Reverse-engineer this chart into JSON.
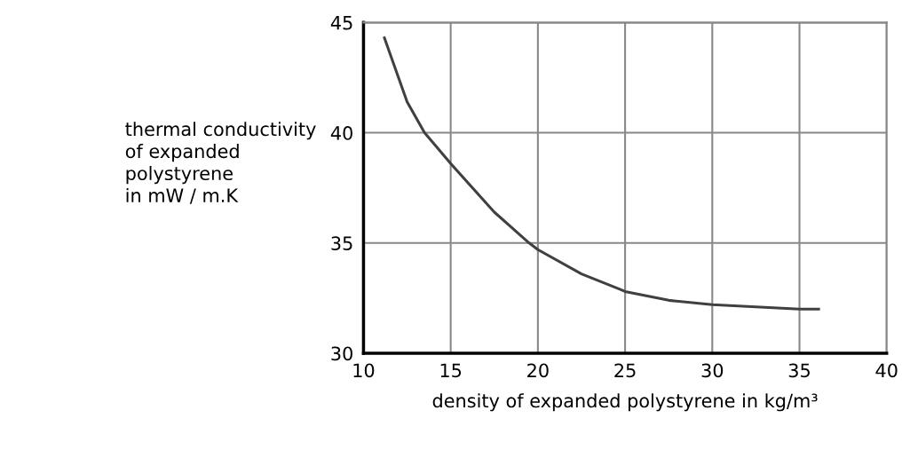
{
  "chart_data": {
    "type": "line",
    "xlabel": "density of expanded polystyrene in kg/m³",
    "ylabel": "thermal conductivity\nof expanded\npolystyrene\nin mW / m.K",
    "x": [
      11.2,
      12.5,
      13.5,
      15,
      17.5,
      19.5,
      20,
      22.5,
      24.7,
      25,
      27.5,
      30,
      35,
      36.1
    ],
    "series": [
      {
        "color": "#404040",
        "values": [
          44.3,
          41.4,
          40,
          38.6,
          36.4,
          35,
          34.7,
          33.6,
          32.9,
          32.8,
          32.4,
          32.2,
          32.0,
          32.0
        ]
      }
    ],
    "xlim": [
      10,
      40
    ],
    "xticks": [
      10,
      15,
      20,
      25,
      30,
      35,
      40
    ],
    "ylim": [
      30,
      45
    ],
    "yticks": [
      30,
      35,
      40,
      45
    ],
    "grid": true,
    "legend": false,
    "marker": "none",
    "line_style": "solid"
  }
}
